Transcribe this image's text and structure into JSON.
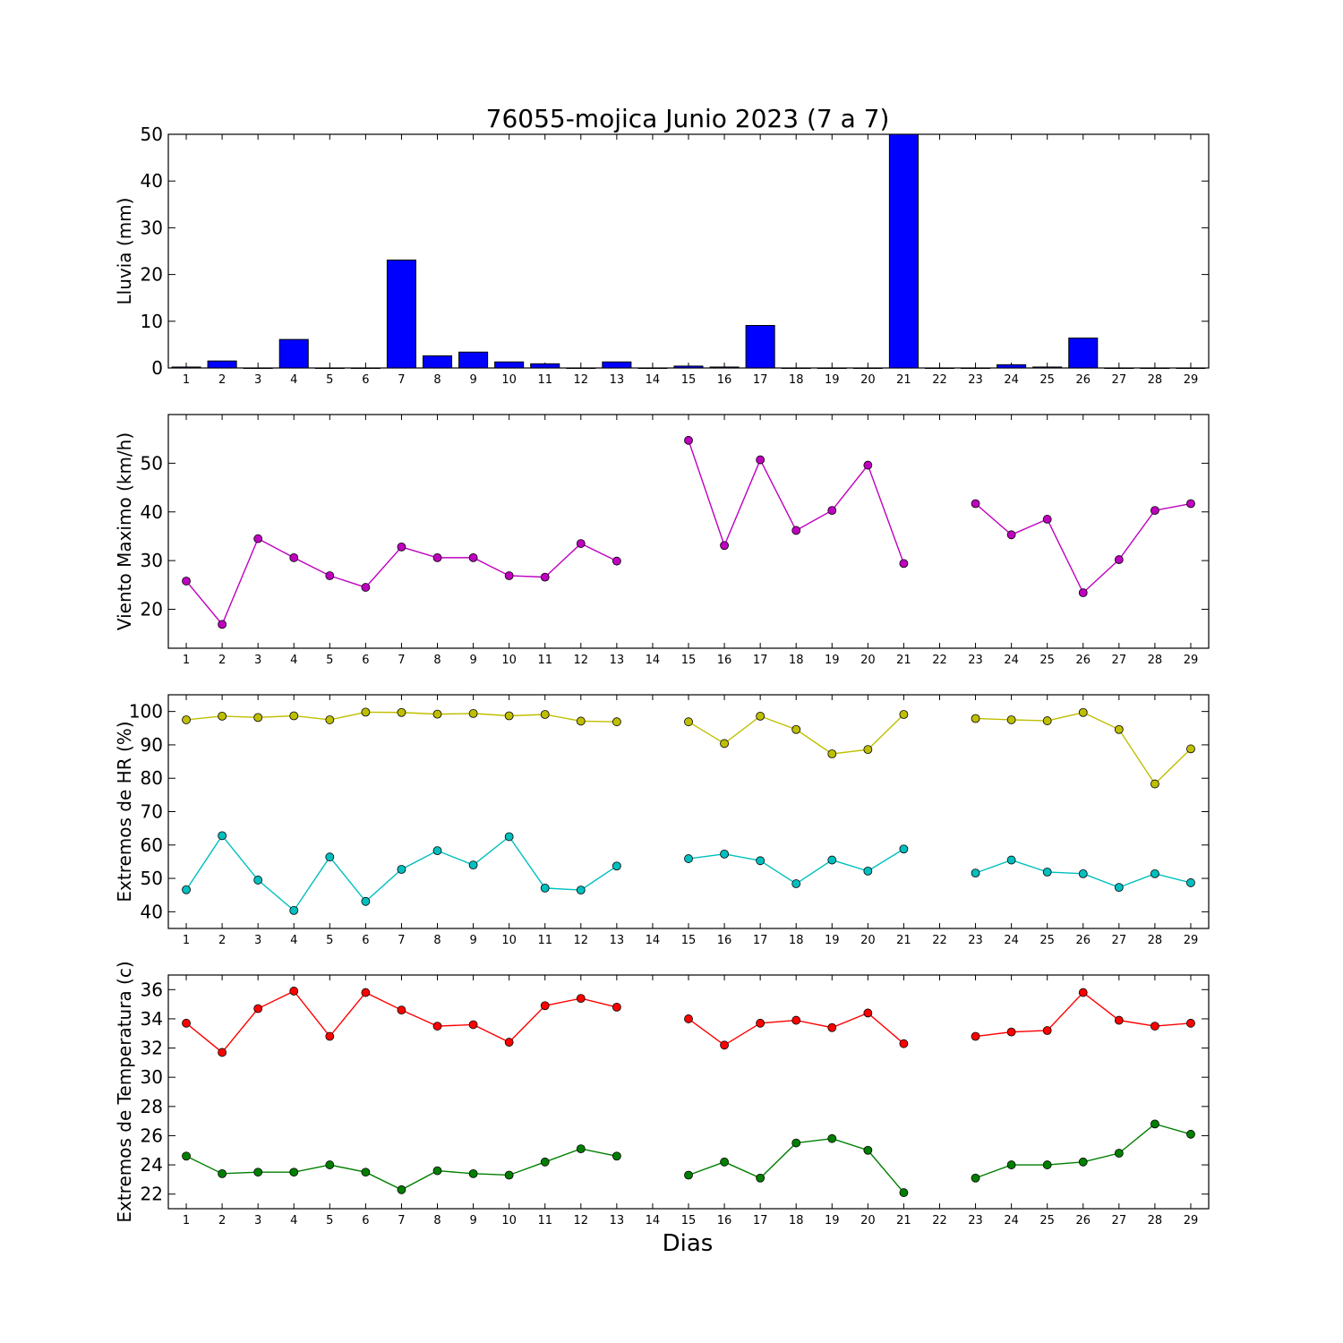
{
  "title": "76055-mojica Junio 2023  (7 a 7)",
  "xlabel": "Dias",
  "days": [
    1,
    2,
    3,
    4,
    5,
    6,
    7,
    8,
    9,
    10,
    11,
    12,
    13,
    14,
    15,
    16,
    17,
    18,
    19,
    20,
    21,
    22,
    23,
    24,
    25,
    26,
    27,
    28,
    29
  ],
  "chart_data": [
    {
      "type": "bar",
      "ylabel": "Lluvia (mm)",
      "ylim": [
        0,
        50
      ],
      "yticks": [
        0,
        10,
        20,
        30,
        40,
        50
      ],
      "x": [
        1,
        2,
        3,
        4,
        5,
        6,
        7,
        8,
        9,
        10,
        11,
        12,
        13,
        14,
        15,
        16,
        17,
        18,
        19,
        20,
        21,
        22,
        23,
        24,
        25,
        26,
        27,
        28,
        29
      ],
      "values": [
        0.2,
        1.5,
        0,
        6.1,
        0,
        0,
        23.1,
        2.6,
        3.4,
        1.3,
        0.9,
        0,
        1.3,
        0,
        0.4,
        0.2,
        9.1,
        0,
        0,
        0,
        50,
        0,
        0,
        0.7,
        0.2,
        6.4,
        0,
        0,
        0
      ],
      "color": "#0000ff"
    },
    {
      "type": "line",
      "ylabel": "Viento Maximo (km/h)",
      "ylim": [
        12,
        60
      ],
      "yticks": [
        20,
        30,
        40,
        50
      ],
      "x": [
        1,
        2,
        3,
        4,
        5,
        6,
        7,
        8,
        9,
        10,
        11,
        12,
        13,
        14,
        15,
        16,
        17,
        18,
        19,
        20,
        21,
        22,
        23,
        24,
        25,
        26,
        27,
        28,
        29
      ],
      "series": [
        {
          "values": [
            25.8,
            16.9,
            34.5,
            30.6,
            26.9,
            24.5,
            32.8,
            30.6,
            30.6,
            26.9,
            26.6,
            33.5,
            29.9,
            null,
            54.7,
            33.1,
            50.7,
            36.2,
            40.3,
            49.6,
            29.4,
            null,
            41.7,
            35.3,
            38.5,
            23.4,
            30.2,
            40.3,
            41.7
          ],
          "color": "#bf00bf"
        }
      ]
    },
    {
      "type": "line",
      "ylabel": "Extremos de HR (%)",
      "ylim": [
        35,
        105
      ],
      "yticks": [
        40,
        50,
        60,
        70,
        80,
        90,
        100
      ],
      "x": [
        1,
        2,
        3,
        4,
        5,
        6,
        7,
        8,
        9,
        10,
        11,
        12,
        13,
        14,
        15,
        16,
        17,
        18,
        19,
        20,
        21,
        22,
        23,
        24,
        25,
        26,
        27,
        28,
        29
      ],
      "series": [
        {
          "values": [
            97.5,
            98.6,
            98.2,
            98.7,
            97.5,
            99.8,
            99.7,
            99.2,
            99.4,
            98.7,
            99.1,
            97.1,
            96.9,
            null,
            96.9,
            90.4,
            98.6,
            94.6,
            87.3,
            88.6,
            99.1,
            null,
            97.9,
            97.5,
            97.2,
            99.7,
            94.6,
            78.3,
            88.8
          ],
          "color": "#bfbf00"
        },
        {
          "values": [
            46.6,
            62.8,
            49.5,
            40.4,
            56.4,
            43.1,
            52.7,
            58.3,
            54.0,
            62.5,
            47.1,
            46.5,
            53.7,
            null,
            55.9,
            57.3,
            55.3,
            48.4,
            55.5,
            52.2,
            58.8,
            null,
            51.6,
            55.5,
            51.9,
            51.4,
            47.3,
            51.4,
            48.7
          ],
          "color": "#00bfbf"
        }
      ]
    },
    {
      "type": "line",
      "ylabel": "Extremos de Temperatura (c)",
      "ylim": [
        21,
        37
      ],
      "yticks": [
        22,
        24,
        26,
        28,
        30,
        32,
        34,
        36
      ],
      "x": [
        1,
        2,
        3,
        4,
        5,
        6,
        7,
        8,
        9,
        10,
        11,
        12,
        13,
        14,
        15,
        16,
        17,
        18,
        19,
        20,
        21,
        22,
        23,
        24,
        25,
        26,
        27,
        28,
        29
      ],
      "series": [
        {
          "values": [
            33.7,
            31.7,
            34.7,
            35.9,
            32.8,
            35.8,
            34.6,
            33.5,
            33.6,
            32.4,
            34.9,
            35.4,
            34.8,
            null,
            34.0,
            32.2,
            33.7,
            33.9,
            33.4,
            34.4,
            32.3,
            null,
            32.8,
            33.1,
            33.2,
            35.8,
            33.9,
            33.5,
            33.7
          ],
          "color": "#ff0000"
        },
        {
          "values": [
            24.6,
            23.4,
            23.5,
            23.5,
            24.0,
            23.5,
            22.3,
            23.6,
            23.4,
            23.3,
            24.2,
            25.1,
            24.6,
            null,
            23.3,
            24.2,
            23.1,
            25.5,
            25.8,
            25.0,
            22.1,
            null,
            23.1,
            24.0,
            24.0,
            24.2,
            24.8,
            26.8,
            26.1
          ],
          "color": "#007f00"
        }
      ]
    }
  ]
}
